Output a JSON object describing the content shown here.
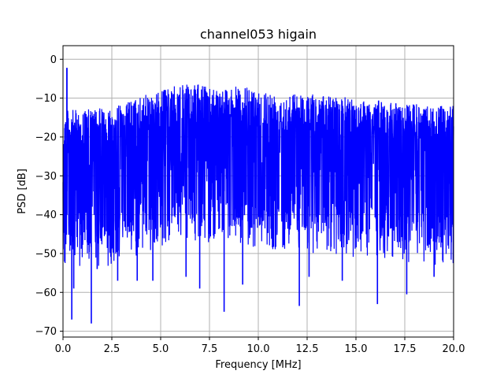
{
  "chart_data": {
    "type": "line",
    "title": "channel053 higain",
    "xlabel": "Frequency [MHz]",
    "ylabel": "PSD [dB]",
    "xlim": [
      0,
      20
    ],
    "ylim": [
      -71.5,
      3.5
    ],
    "xticks": [
      0,
      2.5,
      5,
      7.5,
      10,
      12.5,
      15,
      17.5,
      20
    ],
    "xtick_labels": [
      "0.0",
      "2.5",
      "5.0",
      "7.5",
      "10.0",
      "12.5",
      "15.0",
      "17.5",
      "20.0"
    ],
    "yticks": [
      0,
      -10,
      -20,
      -30,
      -40,
      -50,
      -60,
      -70
    ],
    "ytick_labels": [
      "0",
      "−10",
      "−20",
      "−30",
      "−40",
      "−50",
      "−60",
      "−70"
    ],
    "grid": true,
    "series": [
      {
        "color": "#0000ff",
        "description_points": {
          "peak": {
            "x": 0.2,
            "y": -2.2
          },
          "upper_envelope": [
            {
              "x": 0.0,
              "y": -12
            },
            {
              "x": 1.0,
              "y": -12
            },
            {
              "x": 2.0,
              "y": -11.5
            },
            {
              "x": 3.0,
              "y": -10.5
            },
            {
              "x": 4.0,
              "y": -8.5
            },
            {
              "x": 5.0,
              "y": -7
            },
            {
              "x": 6.0,
              "y": -5.5
            },
            {
              "x": 7.0,
              "y": -5.5
            },
            {
              "x": 8.0,
              "y": -6
            },
            {
              "x": 9.0,
              "y": -6
            },
            {
              "x": 10.0,
              "y": -6.5
            },
            {
              "x": 11.0,
              "y": -7.5
            },
            {
              "x": 12.0,
              "y": -7.5
            },
            {
              "x": 13.0,
              "y": -8
            },
            {
              "x": 14.0,
              "y": -8.5
            },
            {
              "x": 15.0,
              "y": -9
            },
            {
              "x": 16.0,
              "y": -9.5
            },
            {
              "x": 17.0,
              "y": -10
            },
            {
              "x": 18.0,
              "y": -10.5
            },
            {
              "x": 19.0,
              "y": -11
            },
            {
              "x": 20.0,
              "y": -11
            }
          ],
          "deep_dips": [
            {
              "x": 0.45,
              "y": -67
            },
            {
              "x": 0.55,
              "y": -59
            },
            {
              "x": 1.45,
              "y": -68
            },
            {
              "x": 1.75,
              "y": -54
            },
            {
              "x": 2.8,
              "y": -57
            },
            {
              "x": 3.8,
              "y": -57
            },
            {
              "x": 4.6,
              "y": -57
            },
            {
              "x": 6.3,
              "y": -56
            },
            {
              "x": 7.0,
              "y": -59
            },
            {
              "x": 8.25,
              "y": -65
            },
            {
              "x": 9.2,
              "y": -58
            },
            {
              "x": 12.1,
              "y": -63.5
            },
            {
              "x": 12.6,
              "y": -56
            },
            {
              "x": 14.3,
              "y": -57
            },
            {
              "x": 16.1,
              "y": -63
            },
            {
              "x": 17.6,
              "y": -60.5
            },
            {
              "x": 19.0,
              "y": -56
            }
          ]
        }
      }
    ]
  }
}
